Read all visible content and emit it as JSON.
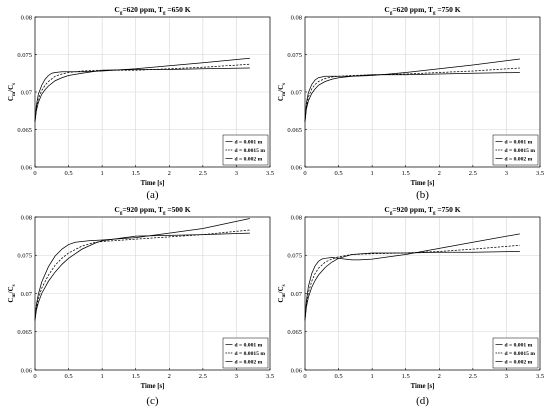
{
  "chart_data": [
    {
      "type": "line",
      "panel_label": "(a)",
      "title": {
        "a": "C",
        "a_sub": "g",
        "b": "=620 ppm, T",
        "b_sub": "g",
        "c": " =650 K"
      },
      "xlabel": "Time [s]",
      "ylabel": {
        "a": "C",
        "a_sub": "m",
        "b": "/C",
        "b_sub": "s"
      },
      "xlim": [
        0,
        3.5
      ],
      "ylim": [
        0.06,
        0.08
      ],
      "xticks": [
        "0",
        "0.5",
        "1",
        "1.5",
        "2",
        "2.5",
        "3",
        "3.5"
      ],
      "yticks": [
        "0.06",
        "0.065",
        "0.07",
        "0.075",
        "0.08"
      ],
      "grid": true,
      "legend_position": "bottom-right",
      "series": [
        {
          "name": "d = 0.001 m",
          "style": "solid",
          "x": [
            0,
            0.02,
            0.05,
            0.1,
            0.15,
            0.2,
            0.25,
            0.3,
            0.4,
            0.5,
            0.7,
            1.0,
            1.5,
            2.0,
            2.5,
            3.2
          ],
          "y": [
            0.066,
            0.0682,
            0.0697,
            0.0709,
            0.0717,
            0.0722,
            0.0725,
            0.0726,
            0.0727,
            0.0727,
            0.0727,
            0.0728,
            0.0731,
            0.0735,
            0.0739,
            0.0745
          ]
        },
        {
          "name": "d = 0.0015 m",
          "style": "dashed",
          "x": [
            0,
            0.02,
            0.05,
            0.1,
            0.15,
            0.2,
            0.3,
            0.4,
            0.5,
            0.7,
            1.0,
            1.5,
            2.0,
            2.5,
            3.2
          ],
          "y": [
            0.066,
            0.0678,
            0.0691,
            0.0702,
            0.0709,
            0.0714,
            0.0721,
            0.0724,
            0.0726,
            0.0728,
            0.0729,
            0.0729,
            0.0731,
            0.0733,
            0.0737
          ]
        },
        {
          "name": "d = 0.002 m",
          "style": "solid",
          "x": [
            0,
            0.02,
            0.05,
            0.1,
            0.15,
            0.2,
            0.3,
            0.4,
            0.5,
            0.7,
            1.0,
            1.5,
            2.0,
            2.5,
            3.2
          ],
          "y": [
            0.066,
            0.0675,
            0.0686,
            0.0697,
            0.0703,
            0.0708,
            0.0715,
            0.0719,
            0.0722,
            0.0725,
            0.0729,
            0.073,
            0.073,
            0.0731,
            0.0732
          ]
        }
      ]
    },
    {
      "type": "line",
      "panel_label": "(b)",
      "title": {
        "a": "C",
        "a_sub": "g",
        "b": "=620 ppm, T",
        "b_sub": "g",
        "c": " =750 K"
      },
      "xlabel": "Time [s]",
      "ylabel": {
        "a": "C",
        "a_sub": "m",
        "b": "/C",
        "b_sub": "s"
      },
      "xlim": [
        0,
        3.5
      ],
      "ylim": [
        0.06,
        0.08
      ],
      "xticks": [
        "0",
        "0.5",
        "1",
        "1.5",
        "2",
        "2.5",
        "3",
        "3.5"
      ],
      "yticks": [
        "0.06",
        "0.065",
        "0.07",
        "0.075",
        "0.08"
      ],
      "grid": true,
      "legend_position": "bottom-right",
      "series": [
        {
          "name": "d = 0.001 m",
          "style": "solid",
          "x": [
            0,
            0.02,
            0.05,
            0.1,
            0.15,
            0.2,
            0.25,
            0.3,
            0.4,
            0.5,
            0.7,
            1.0,
            1.5,
            2.0,
            2.5,
            3.2
          ],
          "y": [
            0.066,
            0.0685,
            0.0699,
            0.071,
            0.0716,
            0.0719,
            0.072,
            0.0721,
            0.0721,
            0.0721,
            0.0721,
            0.0722,
            0.0726,
            0.0731,
            0.0736,
            0.0744
          ]
        },
        {
          "name": "d = 0.0015 m",
          "style": "dashed",
          "x": [
            0,
            0.02,
            0.05,
            0.1,
            0.15,
            0.2,
            0.3,
            0.4,
            0.5,
            0.7,
            1.0,
            1.5,
            2.0,
            2.5,
            3.2
          ],
          "y": [
            0.066,
            0.068,
            0.0693,
            0.0704,
            0.071,
            0.0714,
            0.0718,
            0.072,
            0.0721,
            0.0722,
            0.0723,
            0.0724,
            0.0726,
            0.0728,
            0.0732
          ]
        },
        {
          "name": "d = 0.002 m",
          "style": "solid",
          "x": [
            0,
            0.02,
            0.05,
            0.1,
            0.15,
            0.2,
            0.3,
            0.4,
            0.5,
            0.7,
            1.0,
            1.5,
            2.0,
            2.5,
            3.2
          ],
          "y": [
            0.066,
            0.0677,
            0.0688,
            0.0698,
            0.0704,
            0.0709,
            0.0714,
            0.0717,
            0.0719,
            0.0721,
            0.0723,
            0.0723,
            0.0724,
            0.0725,
            0.0726
          ]
        }
      ]
    },
    {
      "type": "line",
      "panel_label": "(c)",
      "title": {
        "a": "C",
        "a_sub": "g",
        "b": "=920 ppm, T",
        "b_sub": "g",
        "c": " =500 K"
      },
      "xlabel": "Time [s]",
      "ylabel": {
        "a": "C",
        "a_sub": "m",
        "b": "/C",
        "b_sub": "s"
      },
      "xlim": [
        0,
        3.5
      ],
      "ylim": [
        0.06,
        0.08
      ],
      "xticks": [
        "0",
        "0.5",
        "1",
        "1.5",
        "2",
        "2.5",
        "3",
        "3.5"
      ],
      "yticks": [
        "0.06",
        "0.065",
        "0.07",
        "0.075",
        "0.08"
      ],
      "grid": true,
      "legend_position": "bottom-right",
      "series": [
        {
          "name": "d = 0.001 m",
          "style": "solid",
          "x": [
            0,
            0.02,
            0.05,
            0.1,
            0.2,
            0.3,
            0.4,
            0.5,
            0.6,
            0.7,
            0.8,
            1.0,
            1.5,
            2.0,
            2.5,
            3.2
          ],
          "y": [
            0.0665,
            0.0685,
            0.0699,
            0.0715,
            0.0735,
            0.0749,
            0.0758,
            0.0764,
            0.0767,
            0.0768,
            0.0769,
            0.077,
            0.0773,
            0.0779,
            0.0785,
            0.0798
          ]
        },
        {
          "name": "d = 0.0015 m",
          "style": "dashed",
          "x": [
            0,
            0.02,
            0.05,
            0.1,
            0.2,
            0.3,
            0.4,
            0.5,
            0.7,
            0.9,
            1.0,
            1.5,
            2.0,
            2.5,
            3.2
          ],
          "y": [
            0.0665,
            0.0681,
            0.0693,
            0.0707,
            0.0724,
            0.0737,
            0.0746,
            0.0753,
            0.0762,
            0.0767,
            0.0768,
            0.0771,
            0.0774,
            0.0777,
            0.0783
          ]
        },
        {
          "name": "d = 0.002 m",
          "style": "solid",
          "x": [
            0,
            0.02,
            0.05,
            0.1,
            0.2,
            0.3,
            0.4,
            0.5,
            0.7,
            0.9,
            1.0,
            1.5,
            2.0,
            2.5,
            3.2
          ],
          "y": [
            0.0665,
            0.0678,
            0.0688,
            0.07,
            0.0716,
            0.0728,
            0.0738,
            0.0746,
            0.0758,
            0.0766,
            0.0769,
            0.0775,
            0.0776,
            0.0777,
            0.0779
          ]
        }
      ]
    },
    {
      "type": "line",
      "panel_label": "(d)",
      "title": {
        "a": "C",
        "a_sub": "g",
        "b": "=920 ppm, T",
        "b_sub": "g",
        "c": " =750 K"
      },
      "xlabel": "Time [s]",
      "ylabel": {
        "a": "C",
        "a_sub": "m",
        "b": "/C",
        "b_sub": "s"
      },
      "xlim": [
        0,
        3.5
      ],
      "ylim": [
        0.06,
        0.08
      ],
      "xticks": [
        "0",
        "0.5",
        "1",
        "1.5",
        "2",
        "2.5",
        "3",
        "3.5"
      ],
      "yticks": [
        "0.06",
        "0.065",
        "0.07",
        "0.075",
        "0.08"
      ],
      "grid": true,
      "legend_position": "bottom-right",
      "series": [
        {
          "name": "d = 0.001 m",
          "style": "solid",
          "x": [
            0,
            0.02,
            0.05,
            0.1,
            0.15,
            0.2,
            0.25,
            0.3,
            0.4,
            0.5,
            0.6,
            0.7,
            0.8,
            1.0,
            1.5,
            2.0,
            2.5,
            3.2
          ],
          "y": [
            0.0665,
            0.069,
            0.0709,
            0.0726,
            0.0736,
            0.0742,
            0.0745,
            0.0746,
            0.0747,
            0.0746,
            0.0745,
            0.0744,
            0.0744,
            0.0745,
            0.0751,
            0.0759,
            0.0767,
            0.0778
          ]
        },
        {
          "name": "d = 0.0015 m",
          "style": "dashed",
          "x": [
            0,
            0.02,
            0.05,
            0.1,
            0.15,
            0.2,
            0.3,
            0.4,
            0.5,
            0.7,
            1.0,
            1.5,
            2.0,
            2.5,
            3.2
          ],
          "y": [
            0.0665,
            0.0685,
            0.0701,
            0.0716,
            0.0726,
            0.0733,
            0.0741,
            0.0745,
            0.0748,
            0.0751,
            0.0752,
            0.0753,
            0.0755,
            0.0758,
            0.0763
          ]
        },
        {
          "name": "d = 0.002 m",
          "style": "solid",
          "x": [
            0,
            0.02,
            0.05,
            0.1,
            0.15,
            0.2,
            0.3,
            0.4,
            0.5,
            0.7,
            1.0,
            1.5,
            2.0,
            2.5,
            3.2
          ],
          "y": [
            0.0665,
            0.0682,
            0.0695,
            0.0708,
            0.0717,
            0.0724,
            0.0734,
            0.0741,
            0.0746,
            0.0751,
            0.0753,
            0.0753,
            0.0754,
            0.0754,
            0.0755
          ]
        }
      ]
    }
  ]
}
